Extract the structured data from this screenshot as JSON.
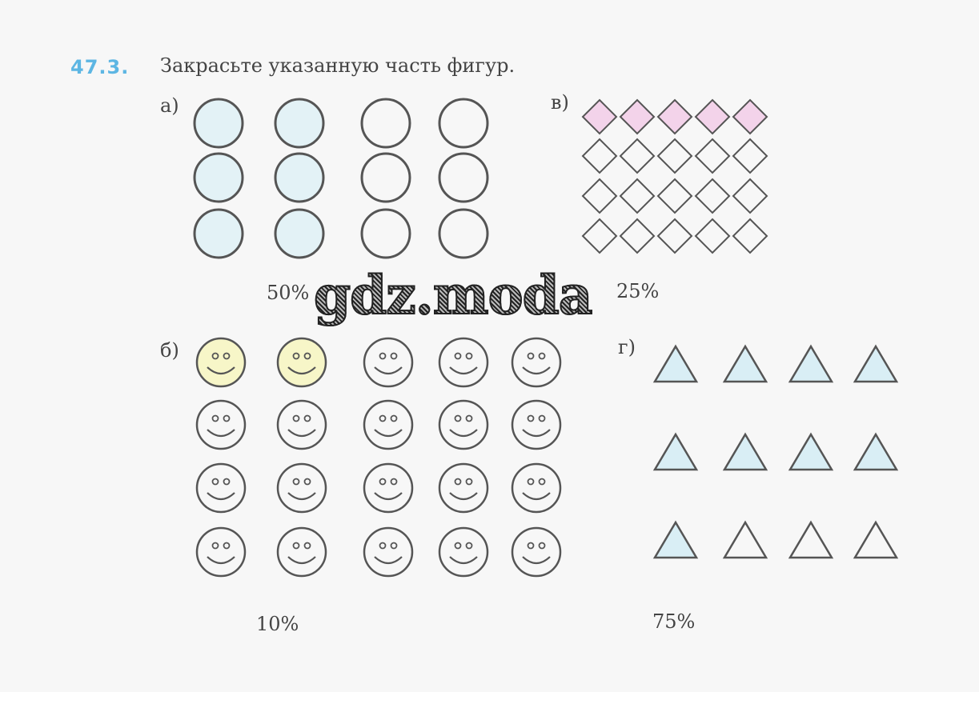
{
  "task": {
    "number": "47.3.",
    "text": "Закрасьте указанную часть фигур."
  },
  "parts": {
    "a": {
      "label": "а)",
      "percent": "50%",
      "shape": "circle",
      "rows": 3,
      "cols": 4,
      "filled": [
        [
          0,
          0
        ],
        [
          0,
          1
        ],
        [
          1,
          0
        ],
        [
          1,
          1
        ],
        [
          2,
          0
        ],
        [
          2,
          1
        ]
      ],
      "fill_color": "#e3f2f6"
    },
    "b": {
      "label": "б)",
      "percent": "10%",
      "shape": "smiley",
      "rows": 4,
      "cols": 5,
      "filled": [
        [
          0,
          0
        ],
        [
          0,
          1
        ]
      ],
      "fill_color": "#f7f6c8"
    },
    "v": {
      "label": "в)",
      "percent": "25%",
      "shape": "diamond",
      "rows": 4,
      "cols": 5,
      "filled": [
        [
          0,
          0
        ],
        [
          0,
          1
        ],
        [
          0,
          2
        ],
        [
          0,
          3
        ],
        [
          0,
          4
        ]
      ],
      "fill_color": "#f3d3ea"
    },
    "g": {
      "label": "г)",
      "percent": "75%",
      "shape": "triangle",
      "rows": 3,
      "cols": 4,
      "filled": [
        [
          0,
          0
        ],
        [
          0,
          1
        ],
        [
          0,
          2
        ],
        [
          0,
          3
        ],
        [
          1,
          0
        ],
        [
          1,
          1
        ],
        [
          1,
          2
        ],
        [
          1,
          3
        ],
        [
          2,
          0
        ]
      ],
      "fill_color": "#d9eef5"
    }
  },
  "watermark": "gdz.moda"
}
